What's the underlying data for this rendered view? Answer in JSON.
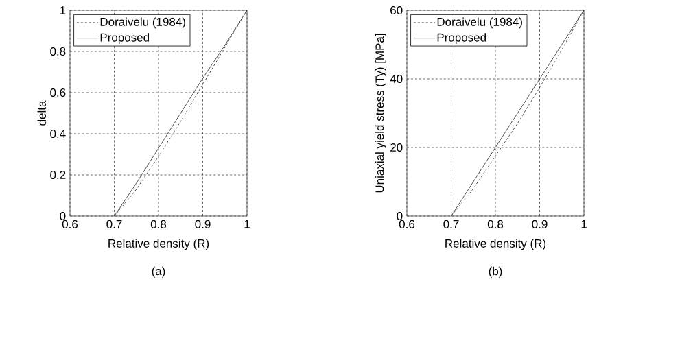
{
  "chart_data": [
    {
      "type": "line",
      "xlabel": "Relative density (R)",
      "ylabel": "delta",
      "annotations": [
        "(a)"
      ],
      "xlim": [
        0.6,
        1
      ],
      "ylim": [
        0,
        1
      ],
      "xticks": [
        0.6,
        0.7,
        0.8,
        0.9,
        1
      ],
      "yticks": [
        0,
        0.2,
        0.4,
        0.6,
        0.8,
        1
      ],
      "grid": true,
      "legend": "top left",
      "x": [
        0.7,
        0.75,
        0.8,
        0.85,
        0.9,
        0.95,
        1
      ],
      "series": [
        {
          "name": "Doraivelu (1984)",
          "color": "#000000",
          "line_style": "dashed",
          "values": [
            0,
            0.13,
            0.29,
            0.46,
            0.64,
            0.82,
            1
          ]
        },
        {
          "name": "Proposed",
          "color": "#000000",
          "line_style": "solid",
          "values": [
            0,
            0.16,
            0.33,
            0.5,
            0.67,
            0.83,
            1
          ]
        }
      ]
    },
    {
      "type": "line",
      "xlabel": "Relative density (R)",
      "ylabel": "Uniaxial yield stress (Ty) [MPa]",
      "annotations": [
        "(b)"
      ],
      "xlim": [
        0.6,
        1
      ],
      "ylim": [
        0,
        60
      ],
      "xticks": [
        0.6,
        0.7,
        0.8,
        0.9,
        1
      ],
      "yticks": [
        0,
        20,
        40,
        60
      ],
      "grid": true,
      "legend": "top left",
      "x": [
        0.7,
        0.75,
        0.8,
        0.85,
        0.9,
        0.95,
        1
      ],
      "series": [
        {
          "name": "Doraivelu (1984)",
          "color": "#000000",
          "line_style": "dashed",
          "values": [
            0,
            8,
            17.5,
            27,
            37.5,
            48.5,
            60
          ]
        },
        {
          "name": "Proposed",
          "color": "#000000",
          "line_style": "solid",
          "values": [
            0,
            10,
            20,
            30,
            40,
            50,
            60
          ]
        }
      ]
    }
  ]
}
